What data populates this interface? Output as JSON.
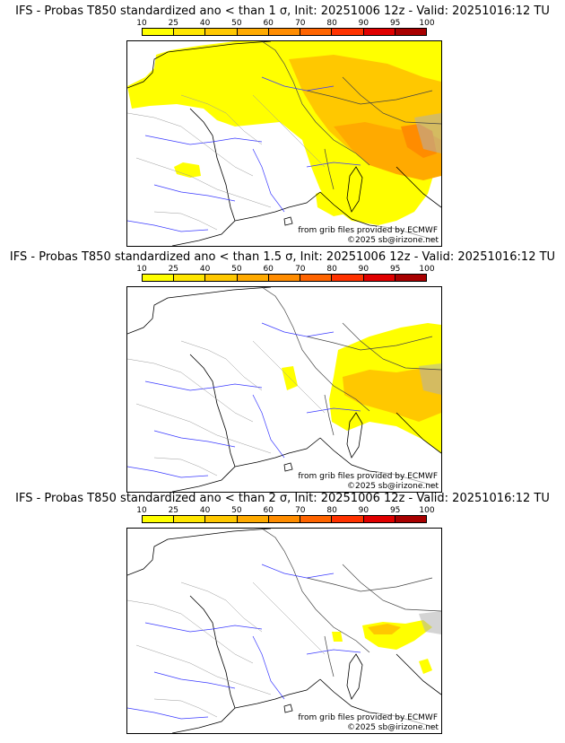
{
  "colorbar": {
    "ticks": [
      "10",
      "25",
      "40",
      "50",
      "60",
      "70",
      "80",
      "90",
      "95",
      "100"
    ],
    "colors": [
      "#ffff00",
      "#ffe600",
      "#ffc800",
      "#ffaa00",
      "#ff8c00",
      "#ff6400",
      "#ff3200",
      "#e00000",
      "#a80000",
      "#700000"
    ]
  },
  "panels": [
    {
      "title": "IFS - Probas T850  standardized ano < than 1 σ, Init: 20251006 12z - Valid: 20251016:12 TU",
      "credit_line1": "from grib files provided by ECMWF",
      "credit_line2": "©2025 sb@irizone.net"
    },
    {
      "title": "IFS - Probas T850  standardized ano < than 1.5 σ, Init: 20251006 12z - Valid: 20251016:12 TU",
      "credit_line1": "from grib files provided by ECMWF",
      "credit_line2": "©2025 sb@irizone.net"
    },
    {
      "title": "IFS - Probas T850  standardized ano < than 2 σ, Init: 20251006 12z - Valid: 20251016:12 TU",
      "credit_line1": "from grib files provided by ECMWF",
      "credit_line2": "©2025 sb@irizone.net"
    }
  ]
}
